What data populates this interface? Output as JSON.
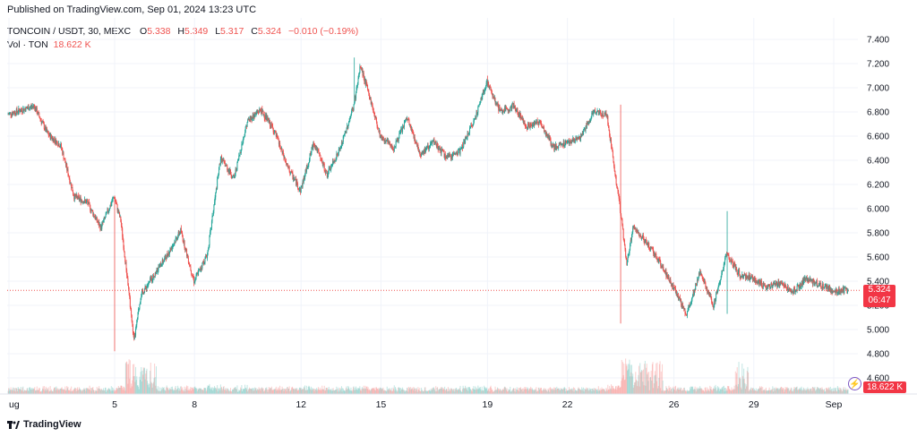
{
  "header": {
    "published": "Published on TradingView.com, Sep 01, 2024 13:23 UTC"
  },
  "legend": {
    "symbol": "TONCOIN / USDT, 30, MEXC",
    "open_label": "O",
    "open": "5.338",
    "high_label": "H",
    "high": "5.349",
    "low_label": "L",
    "low": "5.317",
    "close_label": "C",
    "close": "5.324",
    "change": "−0.010 (−0.19%)",
    "vol_label": "Vol · TON",
    "vol_value": "18.622 K"
  },
  "price_badge": {
    "price": "5.324",
    "countdown": "06:47"
  },
  "volume_badge": {
    "value": "18.622 K"
  },
  "brand": {
    "name": "TradingView"
  },
  "colors": {
    "up": "#26a69a",
    "down": "#ef5350",
    "grid": "#f0f3fa",
    "badge": "#f23645"
  },
  "chart_data": {
    "type": "candlestick",
    "interval": "30",
    "y_axis": {
      "min": 4.6,
      "max": 7.4,
      "ticks": [
        "7.400",
        "7.200",
        "7.000",
        "6.800",
        "6.600",
        "6.400",
        "6.200",
        "6.000",
        "5.800",
        "5.600",
        "5.400",
        "5.200",
        "5.000",
        "4.800",
        "4.600"
      ]
    },
    "x_axis": {
      "ticks": [
        "ug",
        "5",
        "8",
        "12",
        "15",
        "19",
        "22",
        "26",
        "29",
        "Sep"
      ]
    },
    "last_price": 5.324,
    "last_volume": "18.622 K",
    "close_path": [
      {
        "x": "Aug 01",
        "y": 6.78
      },
      {
        "x": "Aug 02",
        "y": 6.85
      },
      {
        "x": "Aug 02 12:00",
        "y": 6.62
      },
      {
        "x": "Aug 03",
        "y": 6.52
      },
      {
        "x": "Aug 03 12:00",
        "y": 6.1
      },
      {
        "x": "Aug 04",
        "y": 6.05
      },
      {
        "x": "Aug 04 12:00",
        "y": 5.84
      },
      {
        "x": "Aug 05",
        "y": 6.1
      },
      {
        "x": "Aug 05 06:00",
        "y": 5.9
      },
      {
        "x": "Aug 05 12:00",
        "y": 5.42
      },
      {
        "x": "Aug 05 18:00",
        "y": 4.9
      },
      {
        "x": "Aug 06",
        "y": 5.28
      },
      {
        "x": "Aug 06 12:00",
        "y": 5.45
      },
      {
        "x": "Aug 07",
        "y": 5.62
      },
      {
        "x": "Aug 07 12:00",
        "y": 5.82
      },
      {
        "x": "Aug 08",
        "y": 5.4
      },
      {
        "x": "Aug 08 12:00",
        "y": 5.62
      },
      {
        "x": "Aug 09",
        "y": 6.42
      },
      {
        "x": "Aug 09 12:00",
        "y": 6.25
      },
      {
        "x": "Aug 10",
        "y": 6.72
      },
      {
        "x": "Aug 10 12:00",
        "y": 6.82
      },
      {
        "x": "Aug 11",
        "y": 6.65
      },
      {
        "x": "Aug 11 12:00",
        "y": 6.35
      },
      {
        "x": "Aug 12",
        "y": 6.15
      },
      {
        "x": "Aug 12 12:00",
        "y": 6.55
      },
      {
        "x": "Aug 13",
        "y": 6.28
      },
      {
        "x": "Aug 13 12:00",
        "y": 6.5
      },
      {
        "x": "Aug 14",
        "y": 6.85
      },
      {
        "x": "Aug 14 06:00",
        "y": 7.18
      },
      {
        "x": "Aug 14 12:00",
        "y": 7.0
      },
      {
        "x": "Aug 15",
        "y": 6.6
      },
      {
        "x": "Aug 15 12:00",
        "y": 6.5
      },
      {
        "x": "Aug 16",
        "y": 6.75
      },
      {
        "x": "Aug 16 12:00",
        "y": 6.45
      },
      {
        "x": "Aug 17",
        "y": 6.55
      },
      {
        "x": "Aug 17 12:00",
        "y": 6.42
      },
      {
        "x": "Aug 18",
        "y": 6.48
      },
      {
        "x": "Aug 18 12:00",
        "y": 6.72
      },
      {
        "x": "Aug 19",
        "y": 7.05
      },
      {
        "x": "Aug 19 12:00",
        "y": 6.8
      },
      {
        "x": "Aug 20",
        "y": 6.85
      },
      {
        "x": "Aug 20 12:00",
        "y": 6.68
      },
      {
        "x": "Aug 21",
        "y": 6.72
      },
      {
        "x": "Aug 21 12:00",
        "y": 6.5
      },
      {
        "x": "Aug 22",
        "y": 6.55
      },
      {
        "x": "Aug 22 12:00",
        "y": 6.58
      },
      {
        "x": "Aug 23",
        "y": 6.8
      },
      {
        "x": "Aug 23 12:00",
        "y": 6.78
      },
      {
        "x": "Aug 24",
        "y": 6.0
      },
      {
        "x": "Aug 24 06:00",
        "y": 5.55
      },
      {
        "x": "Aug 24 12:00",
        "y": 5.85
      },
      {
        "x": "Aug 25",
        "y": 5.72
      },
      {
        "x": "Aug 25 12:00",
        "y": 5.55
      },
      {
        "x": "Aug 26",
        "y": 5.35
      },
      {
        "x": "Aug 26 12:00",
        "y": 5.12
      },
      {
        "x": "Aug 27",
        "y": 5.48
      },
      {
        "x": "Aug 27 12:00",
        "y": 5.2
      },
      {
        "x": "Aug 28",
        "y": 5.62
      },
      {
        "x": "Aug 28 12:00",
        "y": 5.45
      },
      {
        "x": "Aug 29",
        "y": 5.42
      },
      {
        "x": "Aug 29 12:00",
        "y": 5.35
      },
      {
        "x": "Aug 30",
        "y": 5.38
      },
      {
        "x": "Aug 30 12:00",
        "y": 5.32
      },
      {
        "x": "Aug 31",
        "y": 5.42
      },
      {
        "x": "Sep 01",
        "y": 5.324
      }
    ],
    "wick_extremes": [
      {
        "x": "Aug 05",
        "low": 4.82
      },
      {
        "x": "Aug 14",
        "high": 7.25
      },
      {
        "x": "Aug 19",
        "high": 7.1
      },
      {
        "x": "Aug 24",
        "high": 6.86,
        "low": 5.05
      },
      {
        "x": "Aug 28",
        "high": 5.98,
        "low": 5.13
      }
    ],
    "grid": true
  }
}
